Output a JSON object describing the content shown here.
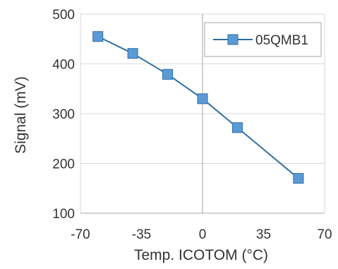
{
  "chart_data": {
    "type": "line",
    "xlabel": "Temp. ICOTOM (°C)",
    "ylabel": "Signal (mV)",
    "xlim": [
      -70,
      70
    ],
    "ylim": [
      100,
      500
    ],
    "x_ticks": [
      -70,
      -35,
      0,
      35,
      70
    ],
    "y_ticks": [
      100,
      200,
      300,
      400,
      500
    ],
    "grid": "horizontal",
    "legend_position": "top-right",
    "series": [
      {
        "name": "05QMB1",
        "color": "#5b9bd5",
        "marker": "square",
        "points": [
          {
            "x": -60,
            "y": 455
          },
          {
            "x": -40,
            "y": 421
          },
          {
            "x": -20,
            "y": 379
          },
          {
            "x": 0,
            "y": 330
          },
          {
            "x": 20,
            "y": 272
          },
          {
            "x": 55,
            "y": 170
          }
        ]
      }
    ]
  }
}
